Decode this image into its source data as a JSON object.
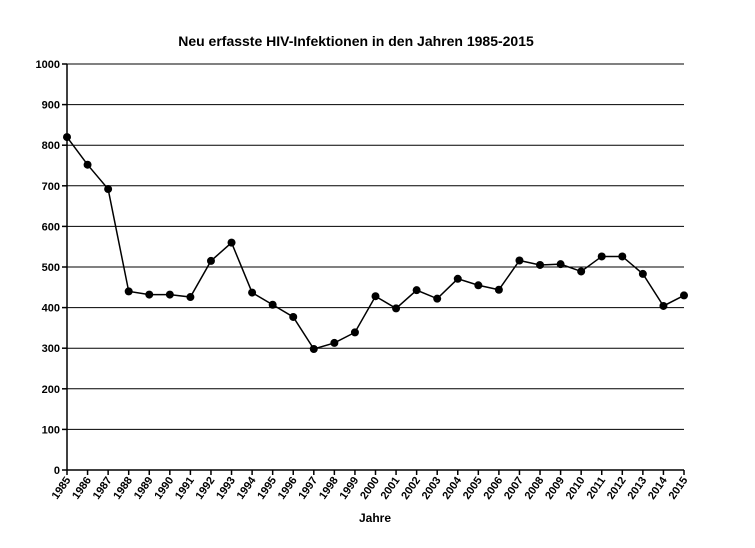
{
  "chart_data": {
    "type": "line",
    "title": "Neu erfasste HIV-Infektionen in den  Jahren 1985-2015",
    "xlabel": "Jahre",
    "ylabel": "",
    "ylim": [
      0,
      1000
    ],
    "yticks": [
      "0",
      "100",
      "200",
      "300",
      "400",
      "500",
      "600",
      "700",
      "800",
      "900",
      "1000"
    ],
    "grid": true,
    "legend": "none",
    "categories": [
      "1985",
      "1986",
      "1987",
      "1988",
      "1989",
      "1990",
      "1991",
      "1992",
      "1993",
      "1994",
      "1995",
      "1996",
      "1997",
      "1998",
      "1999",
      "2000",
      "2001",
      "2002",
      "2003",
      "2004",
      "2005",
      "2006",
      "2007",
      "2008",
      "2009",
      "2010",
      "2011",
      "2012",
      "2013",
      "2014",
      "2015"
    ],
    "series": [
      {
        "values": [
          820,
          752,
          692,
          440,
          432,
          432,
          426,
          515,
          560,
          437,
          407,
          377,
          298,
          313,
          339,
          428,
          398,
          443,
          422,
          471,
          455,
          444,
          516,
          505,
          507,
          489,
          526,
          526,
          483,
          404,
          430
        ]
      }
    ]
  }
}
